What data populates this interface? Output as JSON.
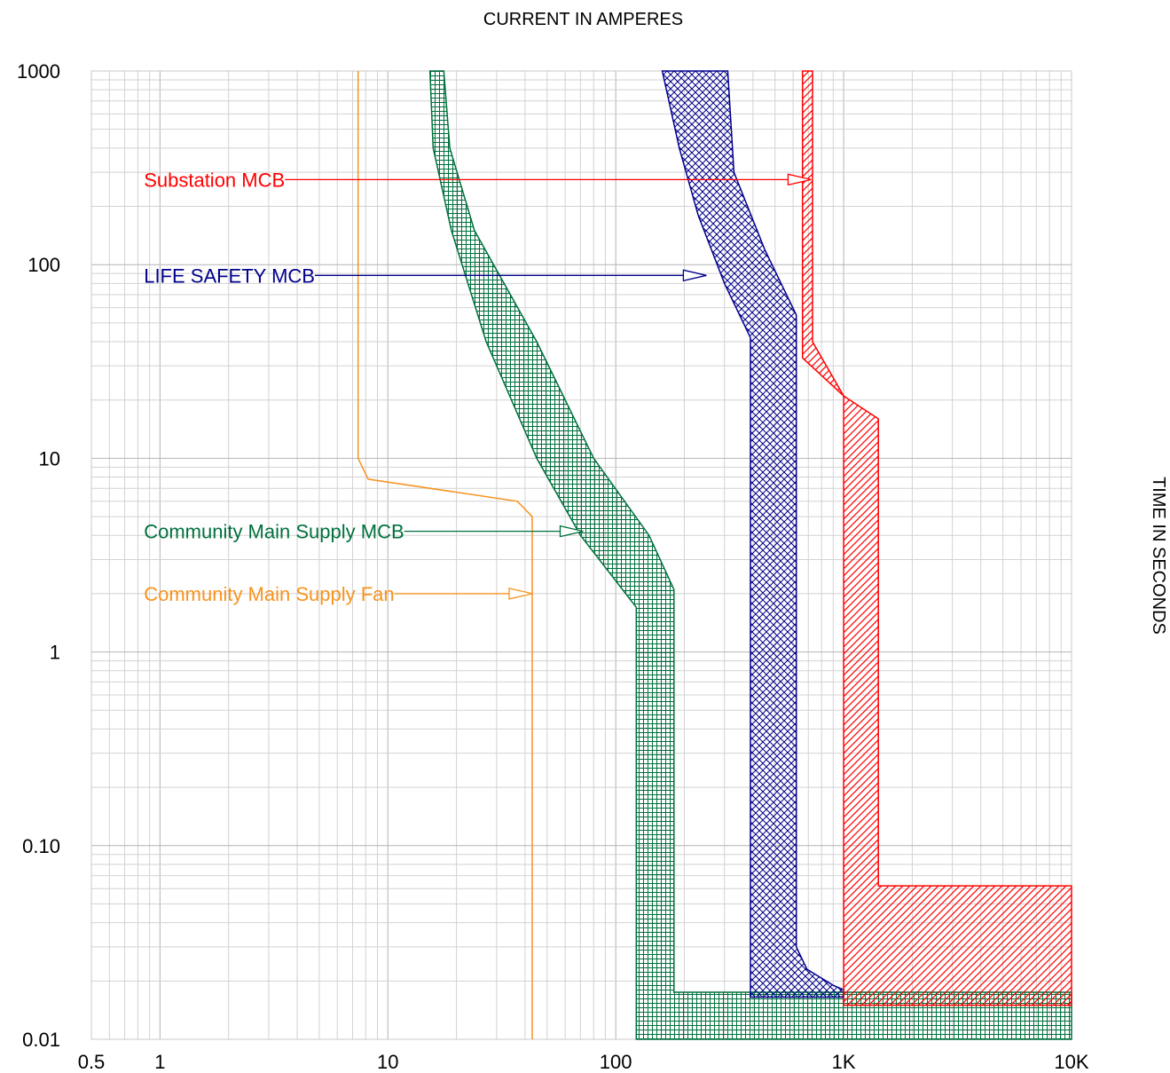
{
  "chart_data": {
    "type": "line",
    "xlabel": "CURRENT IN AMPERES",
    "ylabel": "TIME IN SECONDS",
    "x_scale": "log",
    "y_scale": "log",
    "xlim": [
      0.5,
      10000
    ],
    "ylim": [
      0.01,
      1000
    ],
    "grid": true,
    "x_ticks": [
      {
        "value": 0.5,
        "label": "0.5"
      },
      {
        "value": 1,
        "label": "1"
      },
      {
        "value": 10,
        "label": "10"
      },
      {
        "value": 100,
        "label": "100"
      },
      {
        "value": 1000,
        "label": "1K"
      },
      {
        "value": 10000,
        "label": "10K"
      }
    ],
    "y_ticks": [
      {
        "value": 1000,
        "label": "1000"
      },
      {
        "value": 100,
        "label": "100"
      },
      {
        "value": 10,
        "label": "10"
      },
      {
        "value": 1,
        "label": "1"
      },
      {
        "value": 0.1,
        "label": "0.10"
      },
      {
        "value": 0.01,
        "label": "0.01"
      }
    ],
    "series": [
      {
        "name": "Community Main Supply Fan",
        "color": "#f7931e",
        "style": "curve",
        "points": [
          [
            7.4,
            1000
          ],
          [
            7.4,
            10
          ],
          [
            8.2,
            7.8
          ],
          [
            37,
            6
          ],
          [
            43,
            5
          ],
          [
            43,
            0.01
          ]
        ],
        "label_at": [
          0.85,
          2
        ],
        "arrow_to": [
          43,
          2
        ]
      },
      {
        "name": "Community Main Supply MCB",
        "color": "#00703c",
        "style": "band",
        "hatch": "grid",
        "polygon": [
          [
            15.3,
            1000
          ],
          [
            17.6,
            1000
          ],
          [
            18.7,
            400
          ],
          [
            24,
            150
          ],
          [
            45,
            40
          ],
          [
            80,
            10
          ],
          [
            140,
            4
          ],
          [
            180,
            2.1
          ],
          [
            180,
            0.0175
          ],
          [
            10000,
            0.0175
          ],
          [
            10000,
            0.01
          ],
          [
            123,
            0.01
          ],
          [
            123,
            1.7
          ],
          [
            70,
            4
          ],
          [
            45,
            10
          ],
          [
            27,
            40
          ],
          [
            19,
            150
          ],
          [
            15.8,
            400
          ],
          [
            15.3,
            1000
          ]
        ],
        "label_at": [
          0.85,
          4.2
        ],
        "arrow_to": [
          72,
          4.2
        ]
      },
      {
        "name": "LIFE SAFETY MCB",
        "color": "#00008b",
        "style": "band",
        "hatch": "cross",
        "polygon": [
          [
            230,
            1000
          ],
          [
            310,
            1000
          ],
          [
            330,
            300
          ],
          [
            450,
            120
          ],
          [
            620,
            55
          ],
          [
            620,
            0.03
          ],
          [
            690,
            0.023
          ],
          [
            900,
            0.019
          ],
          [
            1000,
            0.018
          ],
          [
            1000,
            0.0165
          ],
          [
            390,
            0.0165
          ],
          [
            390,
            42
          ],
          [
            300,
            80
          ],
          [
            230,
            180
          ],
          [
            190,
            400
          ],
          [
            160,
            1000
          ],
          [
            230,
            1000
          ]
        ],
        "label_at": [
          0.85,
          88
        ],
        "arrow_to": [
          250,
          88
        ]
      },
      {
        "name": "Substation MCB",
        "color": "#ff0000",
        "style": "band",
        "hatch": "diagonal",
        "polygon": [
          [
            660,
            1000
          ],
          [
            730,
            1000
          ],
          [
            730,
            40
          ],
          [
            1000,
            21
          ],
          [
            1420,
            16
          ],
          [
            1420,
            0.062
          ],
          [
            10000,
            0.062
          ],
          [
            10000,
            0.015
          ],
          [
            1000,
            0.015
          ],
          [
            1000,
            21
          ],
          [
            660,
            33
          ],
          [
            660,
            1000
          ]
        ],
        "label_at": [
          0.85,
          275
        ],
        "arrow_to": [
          720,
          275
        ]
      }
    ]
  }
}
